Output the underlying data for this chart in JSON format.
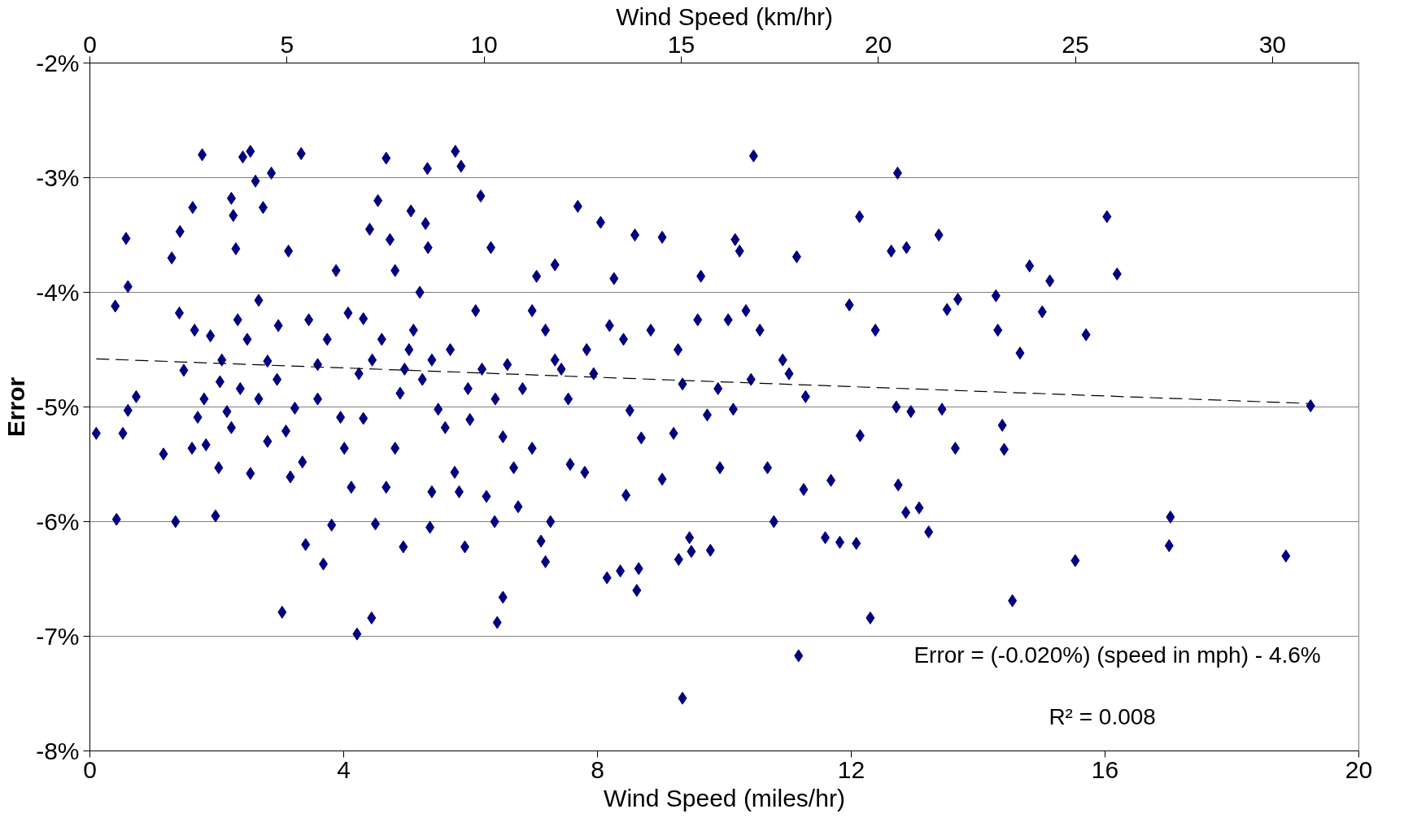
{
  "chart_data": {
    "type": "scatter",
    "xlabel": "Wind Speed (miles/hr)",
    "x2label": "Wind Speed (km/hr)",
    "ylabel": "Error",
    "xlim": [
      0,
      20
    ],
    "xticks": [
      0,
      4,
      8,
      12,
      16,
      20
    ],
    "x2lim": [
      0,
      32.19
    ],
    "x2ticks": [
      0,
      5,
      10,
      15,
      20,
      25,
      30
    ],
    "ylim": [
      -8,
      -2
    ],
    "yticks": [
      {
        "value": -8,
        "label": "-8%"
      },
      {
        "value": -7,
        "label": "-7%"
      },
      {
        "value": -6,
        "label": "-6%"
      },
      {
        "value": -5,
        "label": "-5%"
      },
      {
        "value": -4,
        "label": "-4%"
      },
      {
        "value": -3,
        "label": "-3%"
      },
      {
        "value": -2,
        "label": "-2%"
      }
    ],
    "grid": "y",
    "marker": "diamond",
    "series": [
      {
        "color": "#000080",
        "x": [
          0.1,
          0.4,
          0.42,
          0.52,
          0.57,
          0.6,
          0.6,
          0.73,
          1.16,
          1.29,
          1.35,
          1.42,
          1.41,
          1.48,
          1.61,
          1.62,
          1.77,
          1.7,
          1.83,
          1.9,
          1.98,
          2.03,
          2.05,
          2.16,
          2.23,
          2.26,
          2.3,
          2.33,
          2.41,
          2.53,
          2.53,
          2.61,
          2.73,
          2.86,
          2.66,
          2.8,
          3.03,
          2.97,
          3.09,
          3.13,
          3.16,
          3.33,
          3.35,
          3.4,
          3.45,
          3.59,
          3.68,
          3.81,
          3.88,
          3.95,
          4.07,
          4.21,
          4.12,
          4.24,
          4.31,
          4.41,
          4.44,
          4.5,
          4.54,
          4.67,
          4.73,
          4.67,
          4.81,
          4.89,
          4.94,
          5.06,
          5.03,
          5.2,
          5.29,
          5.32,
          5.33,
          5.36,
          5.39,
          5.49,
          5.76,
          5.85,
          5.75,
          5.82,
          5.91,
          5.99,
          6.08,
          6.16,
          6.32,
          6.25,
          6.38,
          6.42,
          6.51,
          6.51,
          6.58,
          6.68,
          6.75,
          6.97,
          7.04,
          7.11,
          7.18,
          7.26,
          7.33,
          7.43,
          7.57,
          7.69,
          7.8,
          7.94,
          8.05,
          8.15,
          8.26,
          8.36,
          8.45,
          8.51,
          8.59,
          8.62,
          8.65,
          8.69,
          9.02,
          9.02,
          9.2,
          9.34,
          9.28,
          9.34,
          9.45,
          9.48,
          9.63,
          9.73,
          9.78,
          9.9,
          9.93,
          10.17,
          10.24,
          10.14,
          10.46,
          10.56,
          10.68,
          10.78,
          10.92,
          11.02,
          11.14,
          11.17,
          11.25,
          11.28,
          11.68,
          11.59,
          11.82,
          11.97,
          12.08,
          12.13,
          12.14,
          12.3,
          12.38,
          12.63,
          12.73,
          12.74,
          12.71,
          12.86,
          12.94,
          12.87,
          13.07,
          13.22,
          13.38,
          13.43,
          13.51,
          13.64,
          13.68,
          14.28,
          14.31,
          14.38,
          14.41,
          14.54,
          14.66,
          14.81,
          15.01,
          15.13,
          15.53,
          15.7,
          16.03,
          16.19,
          17.03,
          17.01,
          18.85,
          19.24,
          1.65,
          1.8,
          2.08,
          2.23,
          2.37,
          2.48,
          2.66,
          2.8,
          2.95,
          3.23,
          3.59,
          3.74,
          4.01,
          4.31,
          4.45,
          4.6,
          4.81,
          4.96,
          5.1,
          5.24,
          5.39,
          5.6,
          5.68,
          5.96,
          6.18,
          6.39,
          6.82,
          6.97,
          7.18,
          7.33,
          7.54,
          7.83,
          8.19,
          8.41,
          8.84,
          9.27,
          9.58,
          10.06,
          10.34,
          10.42
        ],
        "values": [
          -5.23,
          -4.12,
          -5.98,
          -5.23,
          -3.53,
          -3.95,
          -5.03,
          -4.91,
          -5.41,
          -3.7,
          -6.0,
          -3.47,
          -4.18,
          -4.68,
          -5.36,
          -3.26,
          -2.8,
          -5.09,
          -5.33,
          -4.38,
          -5.95,
          -5.53,
          -4.78,
          -5.04,
          -3.18,
          -3.33,
          -3.62,
          -4.24,
          -2.82,
          -2.77,
          -5.58,
          -3.03,
          -3.26,
          -2.96,
          -4.93,
          -4.6,
          -6.79,
          -4.29,
          -5.21,
          -3.64,
          -5.61,
          -2.79,
          -5.48,
          -6.2,
          -4.24,
          -4.63,
          -6.37,
          -6.03,
          -3.81,
          -5.09,
          -4.18,
          -6.98,
          -5.7,
          -4.71,
          -4.23,
          -3.45,
          -6.84,
          -6.02,
          -3.2,
          -2.83,
          -3.54,
          -5.7,
          -3.81,
          -4.88,
          -6.22,
          -3.29,
          -4.5,
          -4.0,
          -3.4,
          -2.92,
          -3.61,
          -6.05,
          -5.74,
          -5.02,
          -2.77,
          -2.9,
          -5.57,
          -5.74,
          -6.22,
          -5.11,
          -4.16,
          -3.16,
          -3.61,
          -5.78,
          -6.0,
          -6.88,
          -6.66,
          -5.26,
          -4.63,
          -5.53,
          -5.87,
          -5.36,
          -3.86,
          -6.17,
          -6.35,
          -6.0,
          -3.76,
          -4.67,
          -5.5,
          -3.25,
          -5.57,
          -4.71,
          -3.39,
          -6.49,
          -3.88,
          -6.43,
          -5.77,
          -5.03,
          -3.5,
          -6.6,
          -6.41,
          -5.27,
          -3.52,
          -5.63,
          -5.23,
          -4.8,
          -6.33,
          -7.54,
          -6.14,
          -6.26,
          -3.86,
          -5.07,
          -6.25,
          -4.84,
          -5.53,
          -3.54,
          -3.64,
          -5.02,
          -2.81,
          -4.33,
          -5.53,
          -6.0,
          -4.59,
          -4.71,
          -3.69,
          -7.17,
          -5.72,
          -4.91,
          -5.64,
          -6.14,
          -6.18,
          -4.11,
          -6.19,
          -3.34,
          -5.25,
          -6.84,
          -4.33,
          -3.64,
          -2.96,
          -5.68,
          -5.0,
          -5.92,
          -5.04,
          -3.61,
          -5.88,
          -6.09,
          -3.5,
          -5.02,
          -4.15,
          -5.36,
          -4.06,
          -4.03,
          -4.33,
          -5.16,
          -5.37,
          -6.69,
          -4.53,
          -3.77,
          -4.17,
          -3.9,
          -6.34,
          -4.37,
          -3.34,
          -3.84,
          -5.96,
          -6.21,
          -6.3,
          -4.99,
          -4.33,
          -4.93,
          -4.59,
          -5.18,
          -4.84,
          -4.41,
          -4.07,
          -5.3,
          -4.76,
          -5.01,
          -4.93,
          -4.41,
          -5.36,
          -5.1,
          -4.59,
          -4.41,
          -5.36,
          -4.67,
          -4.33,
          -4.76,
          -4.59,
          -5.18,
          -4.5,
          -4.84,
          -4.67,
          -4.93,
          -4.84,
          -4.16,
          -4.33,
          -4.59,
          -4.93,
          -4.5,
          -4.29,
          -4.41,
          -4.33,
          -4.5,
          -4.24,
          -4.24,
          -4.16,
          -4.76
        ]
      },
      {
        "type": "line",
        "color": "#000000",
        "line_style": "dashed",
        "marker": "none",
        "x": [
          0.1,
          19.24
        ],
        "values": [
          -4.58,
          -4.97
        ]
      }
    ],
    "annotations": [
      "Error = (-0.020%) (speed in mph) - 4.6%",
      "R² = 0.008"
    ]
  }
}
